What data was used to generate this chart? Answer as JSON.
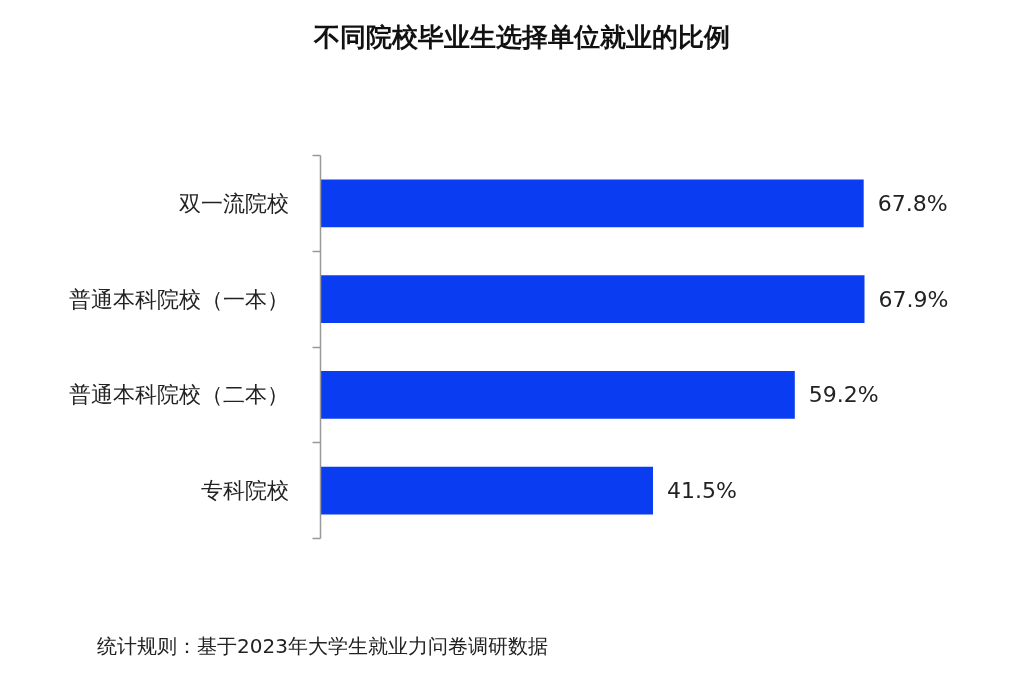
{
  "chart_data": {
    "type": "bar",
    "orientation": "horizontal",
    "title": "不同院校毕业生选择单位就业的比例",
    "categories": [
      "双一流院校",
      "普通本科院校（一本）",
      "普通本科院校（二本）",
      "专科院校"
    ],
    "values": [
      67.8,
      67.9,
      59.2,
      41.5
    ],
    "value_labels": [
      "67.8%",
      "67.9%",
      "59.2%",
      "41.5%"
    ],
    "color": "#0a3cf2",
    "annotations": [
      "统计规则：基于2023年大学生就业力问卷调研数据"
    ]
  }
}
